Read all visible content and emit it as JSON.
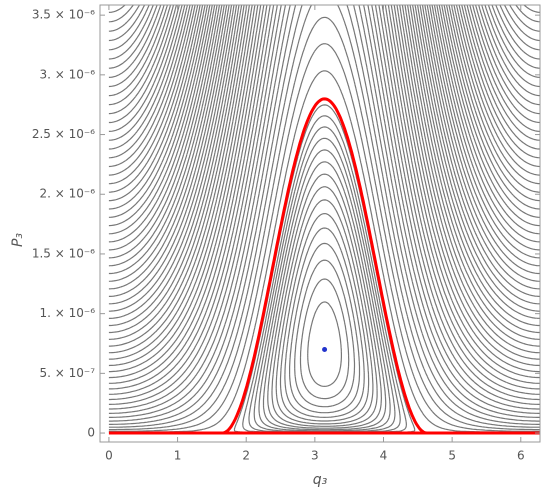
{
  "chart_data": {
    "type": "contour",
    "x_label": "q₃",
    "y_label": "P₃",
    "xlim": [
      -0.13,
      6.28
    ],
    "ylim": [
      -7.5e-08,
      3.585e-06
    ],
    "xticks": [
      0,
      1,
      2,
      3,
      4,
      5,
      6
    ],
    "yticks": [
      0,
      {
        "value": 5e-07,
        "label": "5. × 10⁻⁷"
      },
      {
        "value": 1e-06,
        "label": "1. × 10⁻⁶"
      },
      {
        "value": 1.5e-06,
        "label": "1.5 × 10⁻⁶"
      },
      {
        "value": 2e-06,
        "label": "2. × 10⁻⁶"
      },
      {
        "value": 2.5e-06,
        "label": "2.5 × 10⁻⁶"
      },
      {
        "value": 3e-06,
        "label": "3. × 10⁻⁶"
      },
      {
        "value": 3.5e-06,
        "label": "3.5 × 10⁻⁶"
      }
    ],
    "contour_color": "#777777",
    "separatrix_color": "#ff0000",
    "fixed_point": {
      "x": 3.1416,
      "y": 7e-07,
      "color": "#2233cc"
    }
  }
}
